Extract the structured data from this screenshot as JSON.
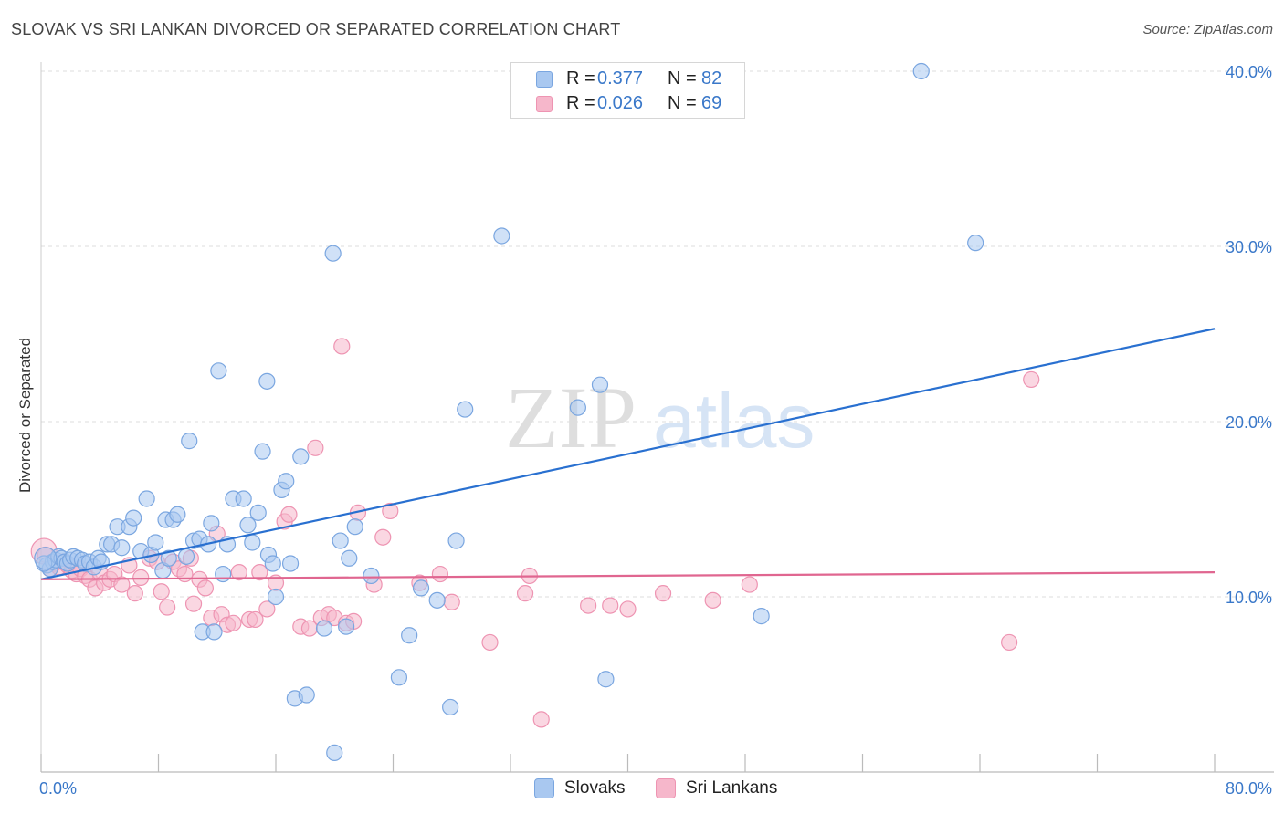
{
  "title": "SLOVAK VS SRI LANKAN DIVORCED OR SEPARATED CORRELATION CHART",
  "source": "Source: ZipAtlas.com",
  "watermark": {
    "zip": "ZIP",
    "atlas": "atlas"
  },
  "legend": {
    "rows": [
      {
        "r_label": "R =",
        "r_value": "0.377",
        "n_label": "N =",
        "n_value": "82"
      },
      {
        "r_label": "R =",
        "r_value": "0.026",
        "n_label": "N =",
        "n_value": "69"
      }
    ]
  },
  "bottom_legend": [
    {
      "name": "Slovaks"
    },
    {
      "name": "Sri Lankans"
    }
  ],
  "colors": {
    "blue_fill": "#a9c8f0",
    "blue_stroke": "#7aa6e0",
    "blue_line": "#2970d0",
    "pink_fill": "#f6b7cb",
    "pink_stroke": "#ee94b2",
    "pink_line": "#e06690",
    "value_text": "#3a78c9",
    "axis_text": "#3a78c9",
    "grid": "#dddddd"
  },
  "chart_data": {
    "type": "scatter",
    "title": "SLOVAK VS SRI LANKAN DIVORCED OR SEPARATED CORRELATION CHART",
    "xlabel": "",
    "ylabel": "Divorced or Separated",
    "xlim": [
      0,
      80
    ],
    "ylim": [
      0,
      40
    ],
    "x_tick_labels": [
      "0.0%",
      "80.0%"
    ],
    "y_ticks": [
      10,
      20,
      30,
      40
    ],
    "y_tick_labels": [
      "10.0%",
      "20.0%",
      "30.0%",
      "40.0%"
    ],
    "grid": true,
    "legend_position": "top-center",
    "series": [
      {
        "name": "Slovaks",
        "r": 0.377,
        "n": 82,
        "trend": {
          "x": [
            0,
            80
          ],
          "y": [
            11.0,
            25.3
          ]
        },
        "points": [
          [
            0.4,
            11.8
          ],
          [
            0.6,
            11.6
          ],
          [
            0.8,
            12.0
          ],
          [
            1.0,
            12.1
          ],
          [
            1.2,
            12.3
          ],
          [
            1.4,
            12.2
          ],
          [
            1.6,
            12.0
          ],
          [
            1.8,
            11.9
          ],
          [
            2.0,
            12.1
          ],
          [
            2.2,
            12.3
          ],
          [
            2.5,
            12.2
          ],
          [
            2.8,
            12.1
          ],
          [
            3.0,
            11.9
          ],
          [
            3.3,
            12.0
          ],
          [
            3.6,
            11.7
          ],
          [
            3.9,
            12.2
          ],
          [
            4.1,
            12.0
          ],
          [
            4.5,
            13.0
          ],
          [
            4.8,
            13.0
          ],
          [
            5.2,
            14.0
          ],
          [
            5.5,
            12.8
          ],
          [
            6.0,
            14.0
          ],
          [
            6.3,
            14.5
          ],
          [
            6.8,
            12.6
          ],
          [
            7.2,
            15.6
          ],
          [
            7.5,
            12.4
          ],
          [
            7.8,
            13.1
          ],
          [
            8.3,
            11.5
          ],
          [
            8.5,
            14.4
          ],
          [
            8.7,
            12.2
          ],
          [
            9.0,
            14.4
          ],
          [
            9.3,
            14.7
          ],
          [
            9.9,
            12.3
          ],
          [
            10.1,
            18.9
          ],
          [
            10.4,
            13.2
          ],
          [
            10.8,
            13.3
          ],
          [
            11.0,
            8.0
          ],
          [
            11.4,
            13.0
          ],
          [
            11.6,
            14.2
          ],
          [
            11.8,
            8.0
          ],
          [
            12.1,
            22.9
          ],
          [
            12.4,
            11.3
          ],
          [
            12.7,
            13.0
          ],
          [
            13.1,
            15.6
          ],
          [
            13.8,
            15.6
          ],
          [
            14.1,
            14.1
          ],
          [
            14.4,
            13.1
          ],
          [
            14.8,
            14.8
          ],
          [
            15.1,
            18.3
          ],
          [
            15.4,
            22.3
          ],
          [
            15.5,
            12.4
          ],
          [
            15.8,
            11.9
          ],
          [
            16.0,
            10.0
          ],
          [
            16.4,
            16.1
          ],
          [
            16.7,
            16.6
          ],
          [
            17.0,
            11.9
          ],
          [
            17.3,
            4.2
          ],
          [
            17.7,
            18.0
          ],
          [
            18.1,
            4.4
          ],
          [
            19.3,
            8.2
          ],
          [
            19.9,
            29.6
          ],
          [
            20.0,
            1.1
          ],
          [
            20.4,
            13.2
          ],
          [
            20.8,
            8.3
          ],
          [
            21.0,
            12.2
          ],
          [
            21.4,
            14.0
          ],
          [
            22.5,
            11.2
          ],
          [
            24.4,
            5.4
          ],
          [
            25.1,
            7.8
          ],
          [
            25.9,
            10.5
          ],
          [
            27.0,
            9.8
          ],
          [
            27.9,
            3.7
          ],
          [
            28.3,
            13.2
          ],
          [
            28.9,
            20.7
          ],
          [
            31.4,
            30.6
          ],
          [
            36.6,
            20.8
          ],
          [
            38.1,
            22.1
          ],
          [
            38.5,
            5.3
          ],
          [
            49.1,
            8.9
          ],
          [
            60.0,
            40.0
          ],
          [
            63.7,
            30.2
          ],
          [
            0.2,
            11.9
          ]
        ]
      },
      {
        "name": "Sri Lankans",
        "r": 0.026,
        "n": 69,
        "trend": {
          "x": [
            0,
            80
          ],
          "y": [
            11.0,
            11.4
          ]
        },
        "points": [
          [
            0.3,
            12.4
          ],
          [
            0.6,
            11.6
          ],
          [
            0.9,
            11.9
          ],
          [
            1.2,
            11.7
          ],
          [
            1.5,
            12.0
          ],
          [
            1.8,
            11.8
          ],
          [
            2.1,
            11.5
          ],
          [
            2.4,
            11.3
          ],
          [
            2.7,
            11.6
          ],
          [
            3.0,
            11.2
          ],
          [
            3.3,
            11.0
          ],
          [
            3.7,
            10.5
          ],
          [
            4.0,
            11.4
          ],
          [
            4.3,
            10.8
          ],
          [
            4.7,
            11.0
          ],
          [
            5.0,
            11.3
          ],
          [
            5.5,
            10.7
          ],
          [
            6.0,
            11.8
          ],
          [
            6.4,
            10.2
          ],
          [
            6.8,
            11.1
          ],
          [
            7.4,
            12.2
          ],
          [
            7.9,
            12.0
          ],
          [
            8.2,
            10.3
          ],
          [
            8.6,
            9.4
          ],
          [
            9.0,
            12.0
          ],
          [
            9.4,
            11.6
          ],
          [
            9.8,
            11.3
          ],
          [
            10.2,
            12.2
          ],
          [
            10.4,
            9.6
          ],
          [
            10.8,
            11.0
          ],
          [
            11.2,
            10.5
          ],
          [
            11.6,
            8.8
          ],
          [
            12.0,
            13.6
          ],
          [
            12.3,
            9.0
          ],
          [
            12.7,
            8.4
          ],
          [
            13.1,
            8.5
          ],
          [
            13.5,
            11.4
          ],
          [
            14.2,
            8.7
          ],
          [
            14.6,
            8.7
          ],
          [
            14.9,
            11.4
          ],
          [
            15.4,
            9.3
          ],
          [
            16.0,
            10.8
          ],
          [
            16.6,
            14.3
          ],
          [
            16.9,
            14.7
          ],
          [
            17.7,
            8.3
          ],
          [
            18.3,
            8.2
          ],
          [
            18.7,
            18.5
          ],
          [
            19.1,
            8.8
          ],
          [
            19.6,
            9.0
          ],
          [
            20.0,
            8.8
          ],
          [
            20.5,
            24.3
          ],
          [
            20.8,
            8.5
          ],
          [
            21.3,
            8.6
          ],
          [
            21.6,
            14.8
          ],
          [
            22.7,
            10.7
          ],
          [
            23.3,
            13.4
          ],
          [
            23.8,
            14.9
          ],
          [
            25.8,
            10.8
          ],
          [
            27.2,
            11.3
          ],
          [
            28.0,
            9.7
          ],
          [
            30.6,
            7.4
          ],
          [
            33.0,
            10.2
          ],
          [
            33.3,
            11.2
          ],
          [
            34.1,
            3.0
          ],
          [
            37.3,
            9.5
          ],
          [
            38.8,
            9.5
          ],
          [
            42.4,
            10.2
          ],
          [
            45.8,
            9.8
          ],
          [
            48.3,
            10.7
          ]
        ],
        "extra_points": [
          [
            66.0,
            7.4
          ],
          [
            67.5,
            22.4
          ],
          [
            40.0,
            9.3
          ]
        ]
      }
    ]
  }
}
